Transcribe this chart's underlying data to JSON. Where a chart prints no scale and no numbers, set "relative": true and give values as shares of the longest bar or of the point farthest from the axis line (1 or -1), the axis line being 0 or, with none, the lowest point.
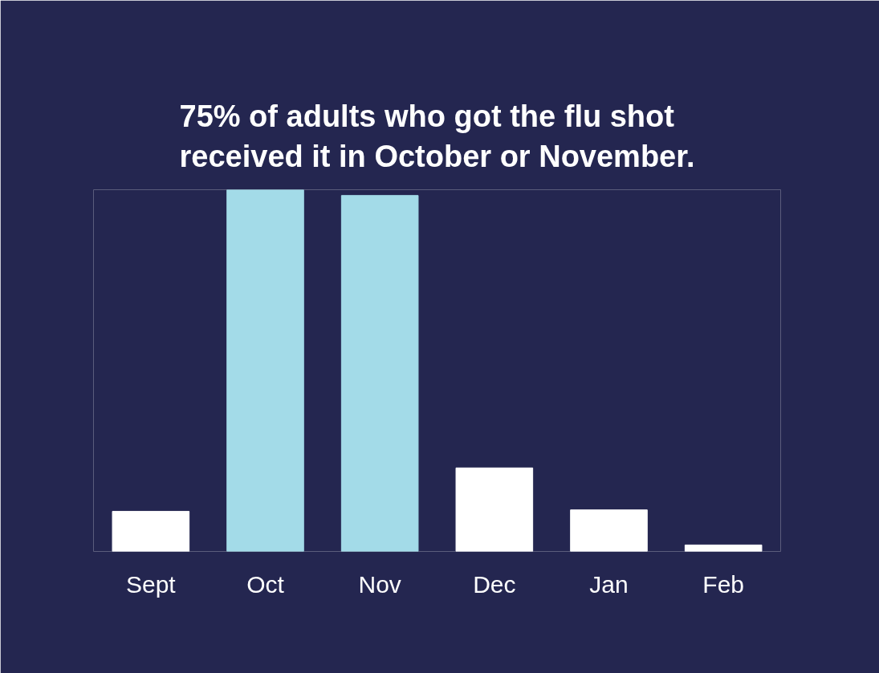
{
  "chart_data": {
    "type": "bar",
    "title": "75% of adults who got the flu shot received it in October or November.",
    "categories": [
      "Sept",
      "Oct",
      "Nov",
      "Dec",
      "Jan",
      "Feb"
    ],
    "values": [
      0.111,
      1,
      0.984,
      0.231,
      0.115,
      0.018
    ],
    "colors": [
      "#ffffff",
      "#a3dbe8",
      "#a3dbe8",
      "#ffffff",
      "#ffffff",
      "#ffffff"
    ],
    "relative": true,
    "grid": false
  }
}
